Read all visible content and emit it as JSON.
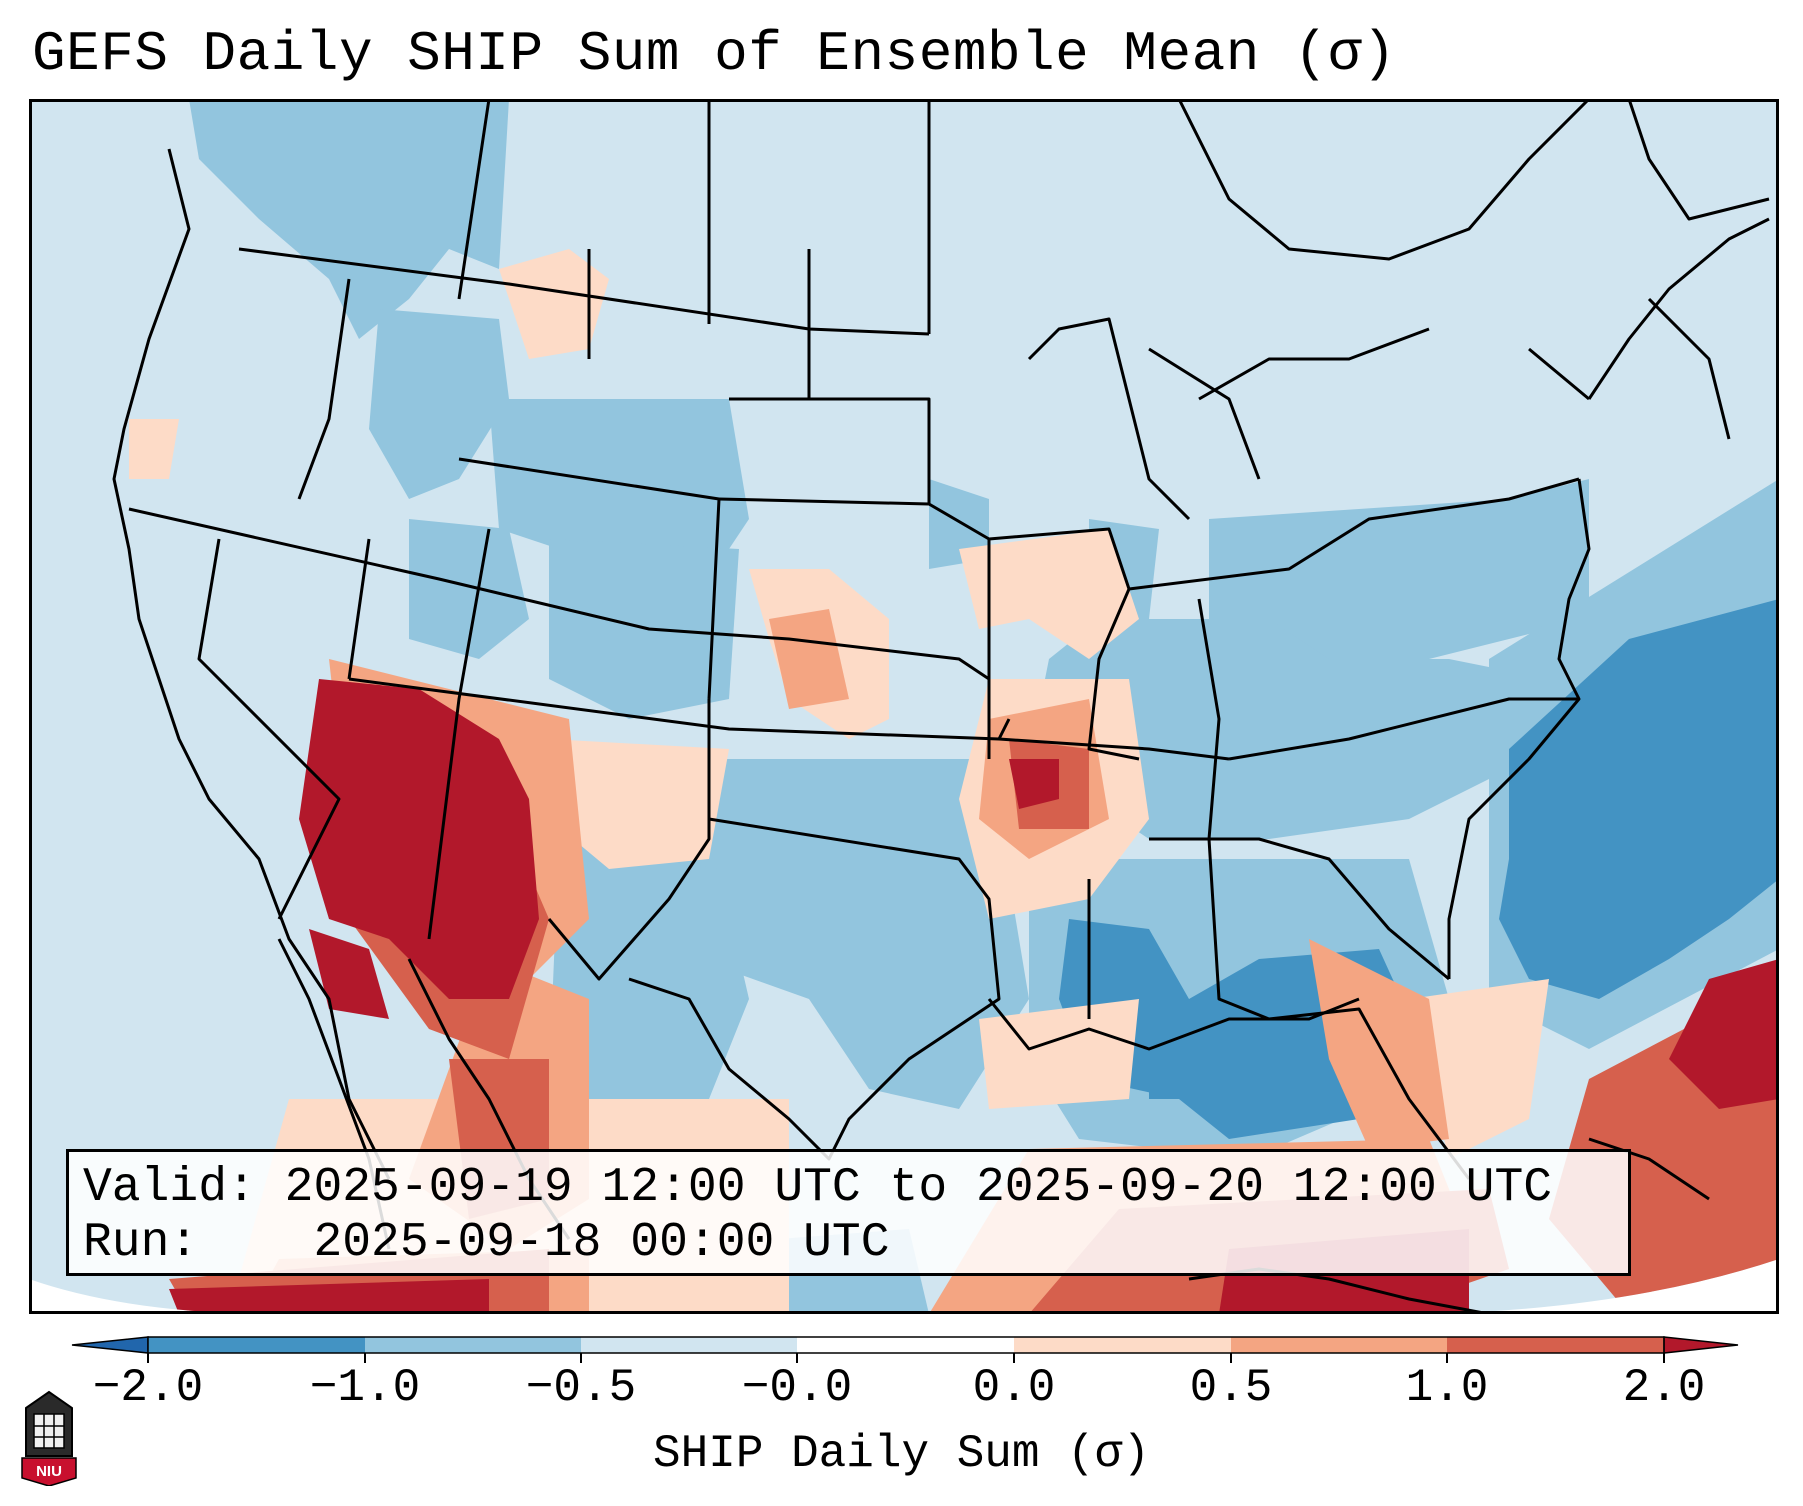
{
  "title": "GEFS Daily SHIP Sum of Ensemble Mean (σ)",
  "infobox": {
    "valid_label": "Valid:",
    "valid_text": "2025-09-19 12:00 UTC to 2025-09-20 12:00 UTC",
    "run_label": "Run:",
    "run_text": "2025-09-18 00:00 UTC"
  },
  "colorbar": {
    "label": "SHIP Daily Sum (σ)",
    "ticks": [
      "−2.0",
      "−1.0",
      "−0.5",
      "−0.0",
      "0.0",
      "0.5",
      "1.0",
      "2.0"
    ],
    "bins": [
      {
        "from": -2.0,
        "to": -1.0,
        "color": "#4393c3"
      },
      {
        "from": -1.0,
        "to": -0.5,
        "color": "#92c5de"
      },
      {
        "from": -0.5,
        "to": -0.0,
        "color": "#d1e5f0"
      },
      {
        "from": 0.0,
        "to": 0.0,
        "color": "#ffffff"
      },
      {
        "from": 0.0,
        "to": 0.5,
        "color": "#fddbc7"
      },
      {
        "from": 0.5,
        "to": 1.0,
        "color": "#f4a582"
      },
      {
        "from": 1.0,
        "to": 2.0,
        "color": "#d6604d"
      }
    ],
    "under_color": "#2166ac",
    "over_color": "#b2182b"
  },
  "colors": {
    "background": "#d1e5f0",
    "strong_negative": "#4393c3",
    "negative": "#92c5de",
    "weak_negative": "#d1e5f0",
    "weak_positive": "#fddbc7",
    "positive": "#f4a582",
    "strong_positive": "#d6604d",
    "extreme_positive": "#b2182b"
  },
  "logo": {
    "text": "NIU"
  }
}
